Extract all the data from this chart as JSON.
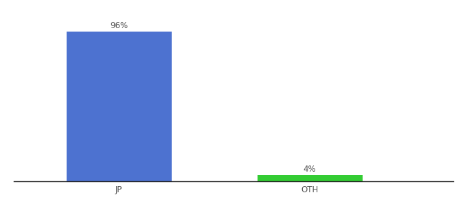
{
  "categories": [
    "JP",
    "OTH"
  ],
  "values": [
    96,
    4
  ],
  "bar_colors": [
    "#4d72d0",
    "#33cc33"
  ],
  "bar_labels": [
    "96%",
    "4%"
  ],
  "background_color": "#ffffff",
  "ylim": [
    0,
    107
  ],
  "label_fontsize": 8.5,
  "tick_fontsize": 8.5,
  "bar_width": 0.55,
  "x_positions": [
    0,
    1
  ],
  "xlim": [
    -0.55,
    1.75
  ],
  "spine_color": "#222222",
  "spine_linewidth": 1.0,
  "tick_color": "#555555"
}
